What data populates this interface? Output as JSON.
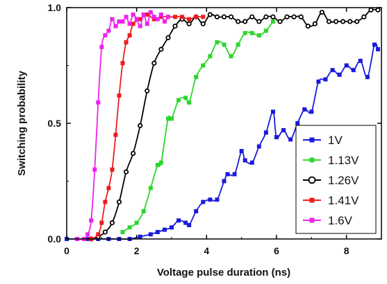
{
  "chart_data": {
    "type": "line",
    "xlabel": "Voltage pulse duration (ns)",
    "ylabel": "Switching probability",
    "xlim": [
      0,
      9
    ],
    "ylim": [
      0,
      1
    ],
    "x_ticks": [
      0,
      2,
      4,
      6,
      8
    ],
    "y_ticks": [
      0.0,
      0.5,
      1.0
    ],
    "x_tick_labels": [
      "0",
      "2",
      "4",
      "6",
      "8"
    ],
    "y_tick_labels": [
      "0.0",
      "0.5",
      "1.0"
    ],
    "grid": false,
    "legend_position": "bottom-right",
    "series": [
      {
        "name": "1V",
        "color": "#1a1adc",
        "marker": "square-filled",
        "x": [
          0,
          0.3,
          0.6,
          0.9,
          1.2,
          1.5,
          1.8,
          2.1,
          2.4,
          2.6,
          2.8,
          3.0,
          3.2,
          3.4,
          3.5,
          3.7,
          3.9,
          4.1,
          4.3,
          4.5,
          4.6,
          4.8,
          5.0,
          5.1,
          5.3,
          5.5,
          5.7,
          5.9,
          6.0,
          6.2,
          6.4,
          6.6,
          6.8,
          7.0,
          7.2,
          7.4,
          7.6,
          7.8,
          8.0,
          8.2,
          8.4,
          8.6,
          8.8,
          8.9
        ],
        "y": [
          0,
          0,
          0,
          0,
          0,
          0,
          0,
          0.01,
          0.02,
          0.03,
          0.04,
          0.05,
          0.08,
          0.07,
          0.06,
          0.12,
          0.16,
          0.17,
          0.17,
          0.25,
          0.28,
          0.28,
          0.38,
          0.34,
          0.33,
          0.4,
          0.46,
          0.55,
          0.44,
          0.47,
          0.43,
          0.5,
          0.56,
          0.55,
          0.68,
          0.69,
          0.73,
          0.71,
          0.75,
          0.73,
          0.77,
          0.7,
          0.84,
          0.82
        ]
      },
      {
        "name": "1.13V",
        "color": "#2cd62c",
        "marker": "square-filled",
        "x": [
          1.6,
          1.8,
          2.0,
          2.2,
          2.4,
          2.6,
          2.7,
          2.9,
          3.0,
          3.2,
          3.4,
          3.5,
          3.7,
          3.9,
          4.1,
          4.3,
          4.5,
          4.7,
          4.9,
          5.1,
          5.3,
          5.5,
          5.7,
          5.9
        ],
        "y": [
          0.03,
          0.05,
          0.07,
          0.12,
          0.22,
          0.32,
          0.33,
          0.52,
          0.52,
          0.6,
          0.61,
          0.59,
          0.7,
          0.75,
          0.79,
          0.85,
          0.84,
          0.79,
          0.84,
          0.89,
          0.89,
          0.88,
          0.9,
          0.94
        ]
      },
      {
        "name": "1.26V",
        "color": "#000000",
        "marker": "circle-open",
        "x": [
          0.7,
          0.9,
          1.1,
          1.3,
          1.5,
          1.7,
          1.9,
          2.1,
          2.3,
          2.5,
          2.7,
          2.9,
          3.1,
          3.3,
          3.5,
          3.7,
          3.9,
          4.1,
          4.3,
          4.5,
          4.7,
          4.9,
          5.1,
          5.3,
          5.5,
          5.7,
          5.9,
          6.1,
          6.3,
          6.5,
          6.7,
          6.9,
          7.1,
          7.3,
          7.5,
          7.7,
          7.9,
          8.1,
          8.3,
          8.5,
          8.7,
          8.9
        ],
        "y": [
          0.0,
          0.01,
          0.03,
          0.07,
          0.16,
          0.29,
          0.37,
          0.49,
          0.64,
          0.76,
          0.82,
          0.87,
          0.92,
          0.95,
          0.93,
          0.96,
          0.93,
          0.97,
          0.96,
          0.96,
          0.96,
          0.94,
          0.94,
          0.96,
          0.94,
          0.96,
          0.96,
          0.94,
          0.96,
          0.96,
          0.96,
          0.92,
          0.93,
          0.98,
          0.94,
          0.94,
          0.94,
          0.94,
          0.94,
          0.96,
          0.99,
          0.99
        ]
      },
      {
        "name": "1.41V",
        "color": "#ee1c1c",
        "marker": "square-filled",
        "x": [
          0.5,
          0.7,
          0.9,
          1.0,
          1.1,
          1.2,
          1.3,
          1.4,
          1.5,
          1.6,
          1.7,
          1.8,
          1.9,
          2.1,
          2.3,
          2.5,
          2.7,
          2.9,
          3.1,
          3.3,
          3.5,
          3.7,
          3.9
        ],
        "y": [
          0.0,
          0.0,
          0.02,
          0.07,
          0.16,
          0.22,
          0.3,
          0.45,
          0.62,
          0.76,
          0.85,
          0.88,
          0.93,
          0.95,
          0.97,
          0.95,
          0.96,
          0.96,
          0.96,
          0.96,
          0.95,
          0.96,
          0.96
        ]
      },
      {
        "name": "1.6V",
        "color": "#ee22ee",
        "marker": "square-filled",
        "x": [
          0.3,
          0.5,
          0.6,
          0.7,
          0.8,
          0.9,
          1.0,
          1.1,
          1.2,
          1.3,
          1.4,
          1.5,
          1.6,
          1.7,
          1.8,
          1.9,
          2.0,
          2.1,
          2.2,
          2.3,
          2.4,
          2.5,
          2.6,
          2.7,
          2.8,
          2.9
        ],
        "y": [
          0.0,
          0.0,
          0.02,
          0.08,
          0.3,
          0.59,
          0.83,
          0.88,
          0.9,
          0.95,
          0.92,
          0.94,
          0.94,
          0.96,
          0.93,
          0.97,
          0.95,
          0.92,
          0.97,
          0.93,
          0.98,
          0.96,
          0.95,
          0.97,
          0.94,
          0.96
        ]
      }
    ]
  }
}
